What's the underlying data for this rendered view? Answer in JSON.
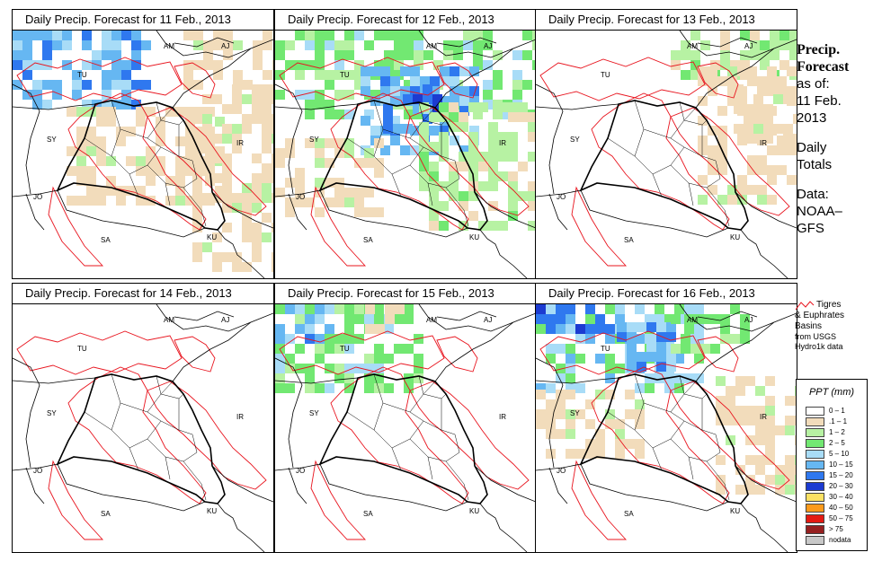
{
  "panels": [
    {
      "title": "Daily Precip. Forecast for  11 Feb., 2013",
      "col": 0,
      "row": 0
    },
    {
      "title": "Daily Precip. Forecast for  12 Feb., 2013",
      "col": 1,
      "row": 0
    },
    {
      "title": "Daily Precip. Forecast for  13 Feb., 2013",
      "col": 2,
      "row": 0
    },
    {
      "title": "Daily Precip. Forecast for  14 Feb., 2013",
      "col": 0,
      "row": 1
    },
    {
      "title": "Daily Precip. Forecast for  15 Feb., 2013",
      "col": 1,
      "row": 1
    },
    {
      "title": "Daily Precip. Forecast for  16 Feb., 2013",
      "col": 2,
      "row": 1
    }
  ],
  "country_labels": [
    "AM",
    "AJ",
    "TU",
    "SY",
    "IR",
    "JO",
    "SA",
    "KU"
  ],
  "sidebar": {
    "heading_line1": "Precip.",
    "heading_line2": "Forecast",
    "asof_line1": "as of:",
    "asof_line2": "11 Feb.",
    "asof_line3": "2013",
    "totals_line1": "Daily",
    "totals_line2": "Totals",
    "data_line1": "Data:",
    "data_line2": "NOAA–",
    "data_line3": "GFS"
  },
  "basin_legend": {
    "line1": "Tigres",
    "line2": "& Euphrates",
    "line3": "Basins",
    "line4": "from USGS",
    "line5": "Hydro1k data",
    "color": "#e8141e"
  },
  "ppt_legend": {
    "title": "PPT (mm)",
    "items": [
      {
        "label": "0 – 1",
        "color": "#ffffff"
      },
      {
        "label": ".1 – 1",
        "color": "#f2dcbb"
      },
      {
        "label": "1 – 2",
        "color": "#b7f2a3"
      },
      {
        "label": "2 – 5",
        "color": "#72e872"
      },
      {
        "label": "5 – 10",
        "color": "#a8dcf7"
      },
      {
        "label": "10 – 15",
        "color": "#66b7f2"
      },
      {
        "label": "15 – 20",
        "color": "#2f78ef"
      },
      {
        "label": "20 – 30",
        "color": "#1c3bd1"
      },
      {
        "label": "30 – 40",
        "color": "#fbe163"
      },
      {
        "label": "40 – 50",
        "color": "#fc9a1b"
      },
      {
        "label": "50 – 75",
        "color": "#e41a12"
      },
      {
        "label": "> 75",
        "color": "#962020"
      },
      {
        "label": "nodata",
        "color": "#c8c8c8"
      }
    ]
  }
}
